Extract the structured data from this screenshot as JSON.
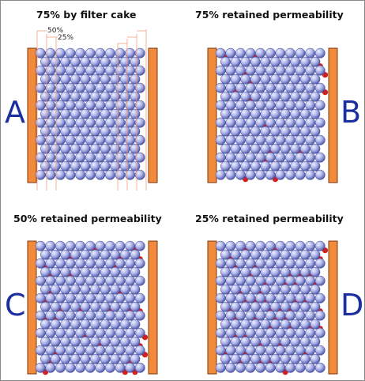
{
  "panels": [
    {
      "id": "A",
      "title": "75% by filter cake",
      "letter": "A",
      "red_mode": "none"
    },
    {
      "id": "B",
      "title": "75% retained permeability",
      "letter": "B",
      "red_mode": "light"
    },
    {
      "id": "C",
      "title": "50% retained permeability",
      "letter": "C",
      "red_mode": "medium"
    },
    {
      "id": "D",
      "title": "25% retained permeability",
      "letter": "D",
      "red_mode": "heavy"
    }
  ],
  "annotations": {
    "label_50": "50%",
    "label_25": "25%"
  },
  "colors": {
    "wall": "#f28a3c",
    "wall_edge": "#7a3a12",
    "sphere_light": "#eef0ff",
    "sphere_mid": "#a7aee6",
    "sphere_dark": "#4d56a6",
    "plug": "#d21f1f",
    "letter": "#1c2f9e",
    "guide": "#f0a080"
  }
}
